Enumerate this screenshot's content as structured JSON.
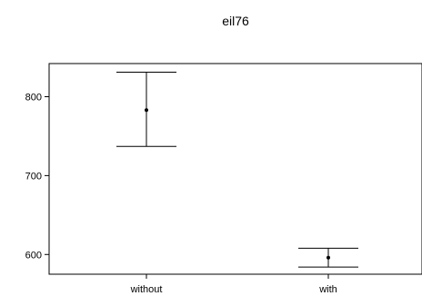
{
  "chart_data": {
    "type": "errorbar",
    "title": "eil76",
    "xlabel": "",
    "ylabel": "",
    "categories": [
      "without",
      "with"
    ],
    "points": [
      {
        "category": "without",
        "mean": 783,
        "lower": 737,
        "upper": 831
      },
      {
        "category": "with",
        "mean": 596,
        "lower": 584,
        "upper": 608
      }
    ],
    "y_ticks": [
      600,
      700,
      800
    ],
    "y_tick_labels": [
      "600",
      "700",
      "800"
    ],
    "ylim": [
      575,
      842
    ],
    "grid": false,
    "legend": "none"
  }
}
